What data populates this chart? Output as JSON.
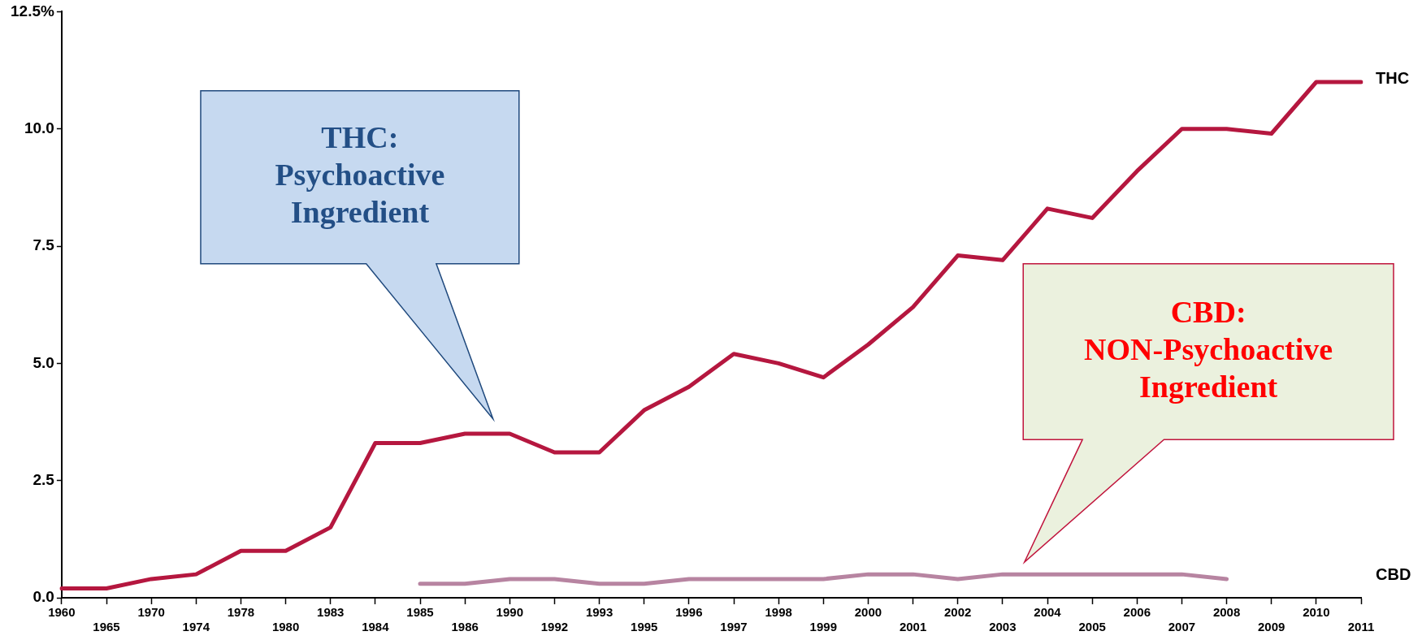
{
  "chart_data": {
    "type": "line",
    "categories": [
      "1960",
      "1965",
      "1970",
      "1974",
      "1978",
      "1980",
      "1983",
      "1984",
      "1985",
      "1986",
      "1990",
      "1992",
      "1993",
      "1995",
      "1996",
      "1997",
      "1998",
      "1999",
      "2000",
      "2001",
      "2002",
      "2003",
      "2004",
      "2005",
      "2006",
      "2007",
      "2008",
      "2009",
      "2010",
      "2011"
    ],
    "series": [
      {
        "name": "THC",
        "color": "#b5173f",
        "values": [
          0.2,
          0.2,
          0.4,
          0.5,
          1.0,
          1.0,
          1.5,
          3.3,
          3.3,
          3.5,
          3.5,
          3.1,
          3.1,
          4.0,
          4.5,
          5.2,
          5.0,
          4.7,
          5.4,
          6.2,
          7.3,
          7.2,
          8.3,
          8.1,
          9.1,
          10.0,
          10.0,
          9.9,
          11.0,
          11.0
        ]
      },
      {
        "name": "CBD",
        "color": "#b784a1",
        "values": [
          null,
          null,
          null,
          null,
          null,
          null,
          null,
          null,
          0.3,
          0.3,
          0.4,
          0.4,
          0.3,
          0.3,
          0.4,
          0.4,
          0.4,
          0.4,
          0.5,
          0.5,
          0.4,
          0.5,
          0.5,
          0.5,
          0.5,
          0.5,
          0.4,
          null,
          null,
          null
        ]
      }
    ],
    "ylim": [
      0,
      12.5
    ],
    "yticks": [
      {
        "value": 0,
        "label": "0.0"
      },
      {
        "value": 2.5,
        "label": "2.5"
      },
      {
        "value": 5,
        "label": "5.0"
      },
      {
        "value": 7.5,
        "label": "7.5"
      },
      {
        "value": 10,
        "label": "10.0"
      },
      {
        "value": 12.5,
        "label": "12.5%"
      }
    ],
    "grid": false,
    "legend": false,
    "marker": "none",
    "line_style": "solid",
    "annotations": [
      "THC: Psychoactive Ingredient",
      "CBD: NON-Psychoactive Ingredient"
    ]
  }
}
